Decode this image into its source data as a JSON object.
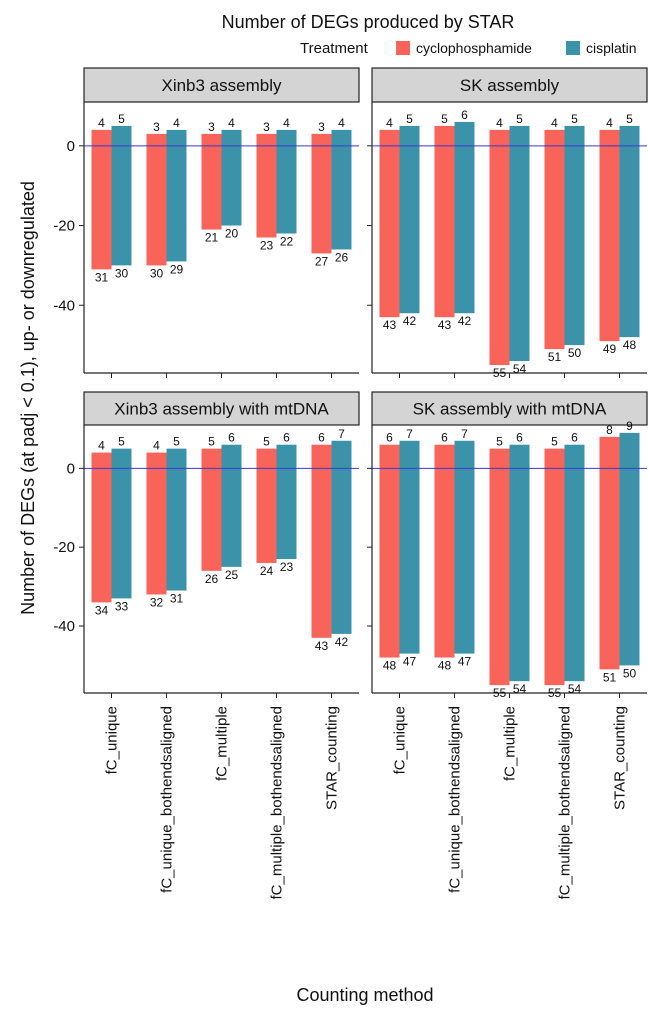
{
  "chart_data": {
    "type": "bar",
    "title": "Number of DEGs produced by STAR",
    "xlabel": "Counting method",
    "ylabel": "Number of DEGs (at padj < 0.1), up- or downregulated",
    "ylim": [
      -57,
      11
    ],
    "yticks": [
      0,
      -20,
      -40
    ],
    "legend": {
      "title": "Treatment",
      "placement": "top-right",
      "entries": [
        "cyclophosphamide",
        "cisplatin"
      ]
    },
    "categories": [
      "fC_unique",
      "fC_unique_bothendsaligned",
      "fC_multiple",
      "fC_multiple_bothendsaligned",
      "STAR_counting"
    ],
    "series_colors": {
      "cyclophosphamide": "#f8635a",
      "cisplatin": "#3b93aa"
    },
    "hline_color": "#3a3ad0",
    "panels": [
      {
        "label": "Xinb3 assembly",
        "series": [
          {
            "name": "cyclophosphamide",
            "up": [
              4,
              3,
              3,
              3,
              3
            ],
            "down": [
              31,
              30,
              21,
              23,
              27
            ]
          },
          {
            "name": "cisplatin",
            "up": [
              5,
              4,
              4,
              4,
              4
            ],
            "down": [
              30,
              29,
              20,
              22,
              26
            ]
          }
        ]
      },
      {
        "label": "SK assembly",
        "series": [
          {
            "name": "cyclophosphamide",
            "up": [
              4,
              5,
              4,
              4,
              4
            ],
            "down": [
              43,
              43,
              55,
              51,
              49
            ]
          },
          {
            "name": "cisplatin",
            "up": [
              5,
              6,
              5,
              5,
              5
            ],
            "down": [
              42,
              42,
              54,
              50,
              48
            ]
          }
        ]
      },
      {
        "label": "Xinb3 assembly with mtDNA",
        "series": [
          {
            "name": "cyclophosphamide",
            "up": [
              4,
              4,
              5,
              5,
              6
            ],
            "down": [
              34,
              32,
              26,
              24,
              43
            ]
          },
          {
            "name": "cisplatin",
            "up": [
              5,
              5,
              6,
              6,
              7
            ],
            "down": [
              33,
              31,
              25,
              23,
              42
            ]
          }
        ]
      },
      {
        "label": "SK assembly with mtDNA",
        "series": [
          {
            "name": "cyclophosphamide",
            "up": [
              6,
              6,
              5,
              5,
              8
            ],
            "down": [
              48,
              48,
              55,
              55,
              51
            ]
          },
          {
            "name": "cisplatin",
            "up": [
              7,
              7,
              6,
              6,
              9
            ],
            "down": [
              47,
              47,
              54,
              54,
              50
            ]
          }
        ]
      }
    ]
  }
}
